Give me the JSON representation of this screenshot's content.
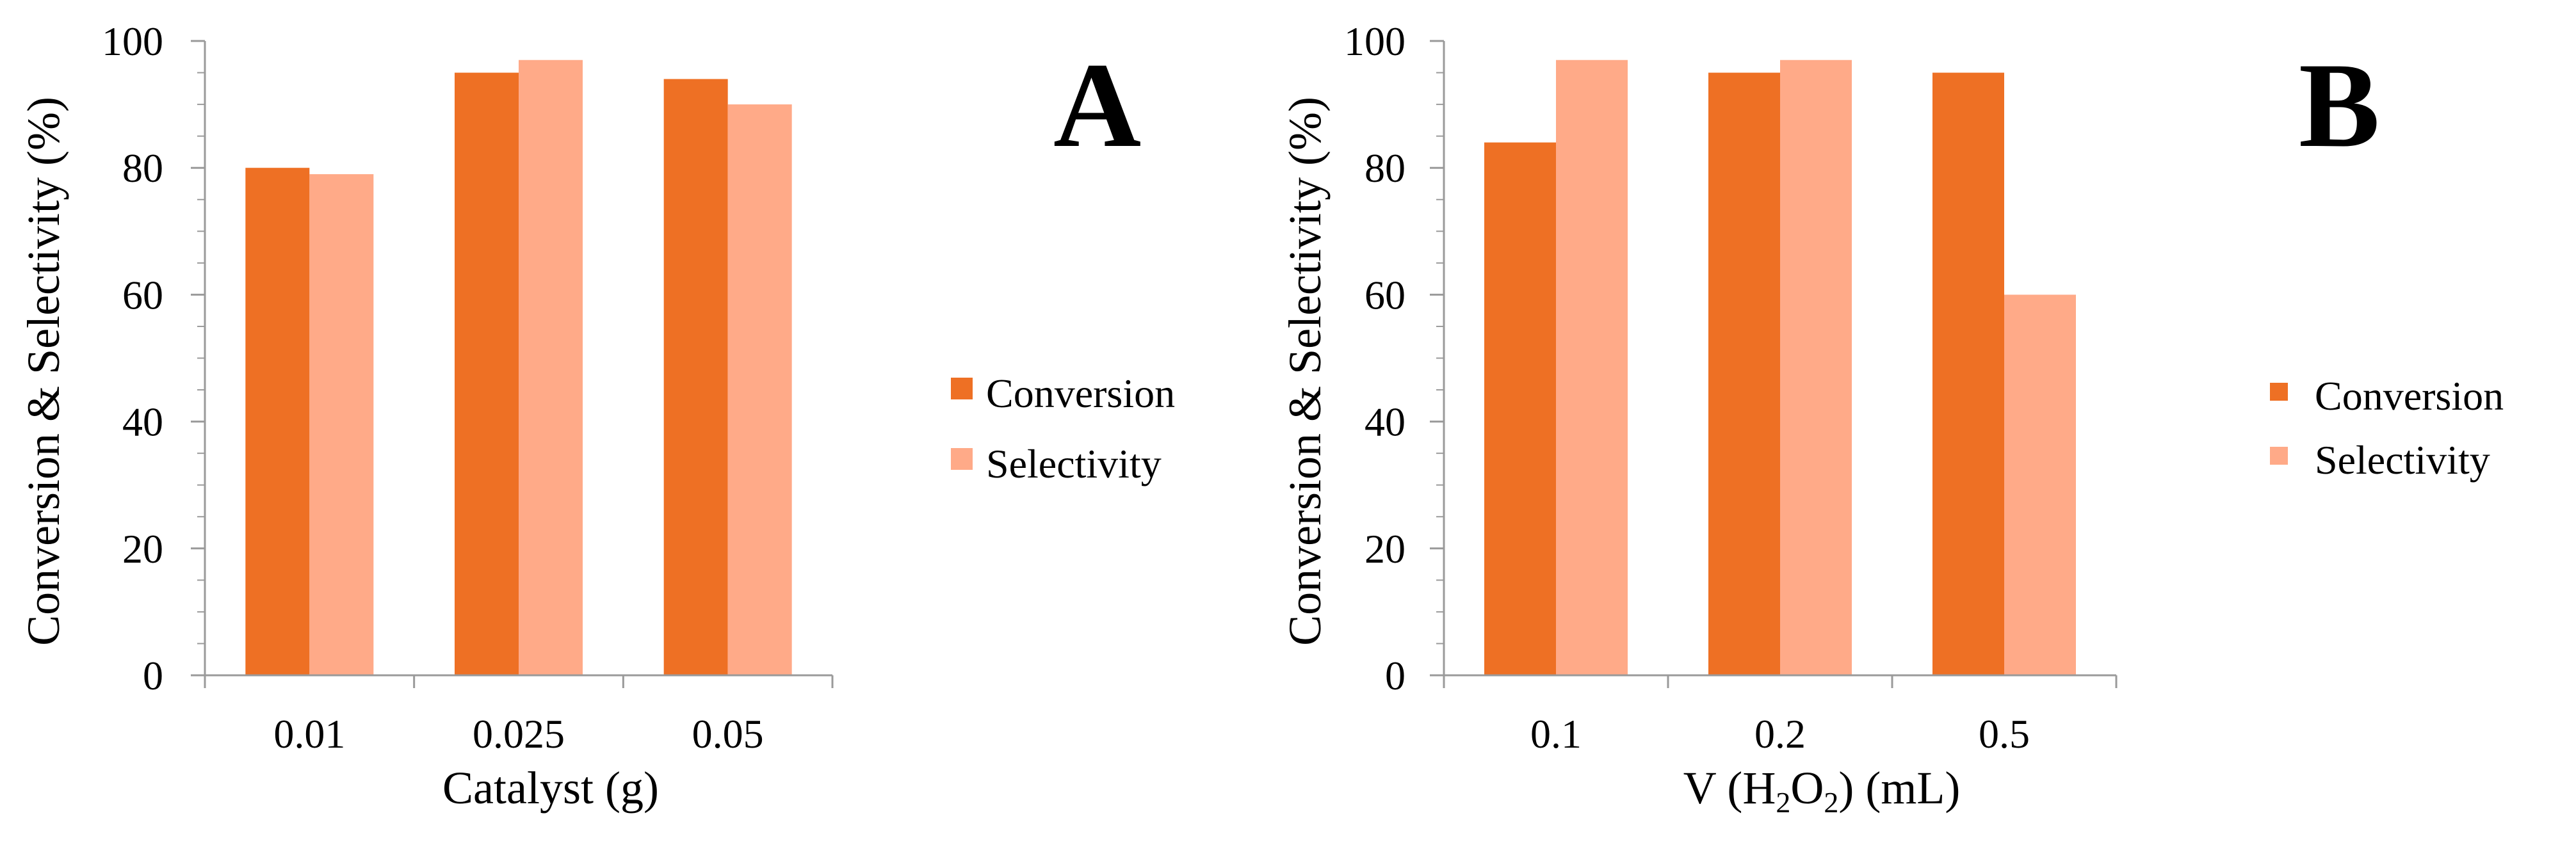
{
  "colors": {
    "conversion": "#EE7024",
    "selectivity": "#FFAA88",
    "axis": "#9A9A9A"
  },
  "chart_data": [
    {
      "type": "bar",
      "panel": "A",
      "categories": [
        "0.01",
        "0.025",
        "0.05"
      ],
      "series": [
        {
          "name": "Conversion",
          "values": [
            80,
            95,
            94
          ]
        },
        {
          "name": "Selectivity",
          "values": [
            79,
            97,
            90
          ]
        }
      ],
      "xlabel": "Catalyst (g)",
      "ylabel": "Conversion & Selectivity (%)",
      "ylim": [
        0,
        100
      ],
      "yticks": [
        "0",
        "20",
        "40",
        "60",
        "80",
        "100"
      ],
      "legend": "right",
      "grid": false
    },
    {
      "type": "bar",
      "panel": "B",
      "categories": [
        "0.1",
        "0.2",
        "0.5"
      ],
      "series": [
        {
          "name": "Conversion",
          "values": [
            84,
            95,
            95
          ]
        },
        {
          "name": "Selectivity",
          "values": [
            97,
            97,
            60
          ]
        }
      ],
      "xlabel": "V (H2O2) (mL)",
      "xlabel_parts": {
        "prefix": "V (H",
        "sub1": "2",
        "mid": "O",
        "sub2": "2",
        "suffix": ") (mL)"
      },
      "ylabel": "Conversion & Selectivity (%)",
      "ylim": [
        0,
        100
      ],
      "yticks": [
        "0",
        "20",
        "40",
        "60",
        "80",
        "100"
      ],
      "legend": "right",
      "grid": false
    }
  ]
}
